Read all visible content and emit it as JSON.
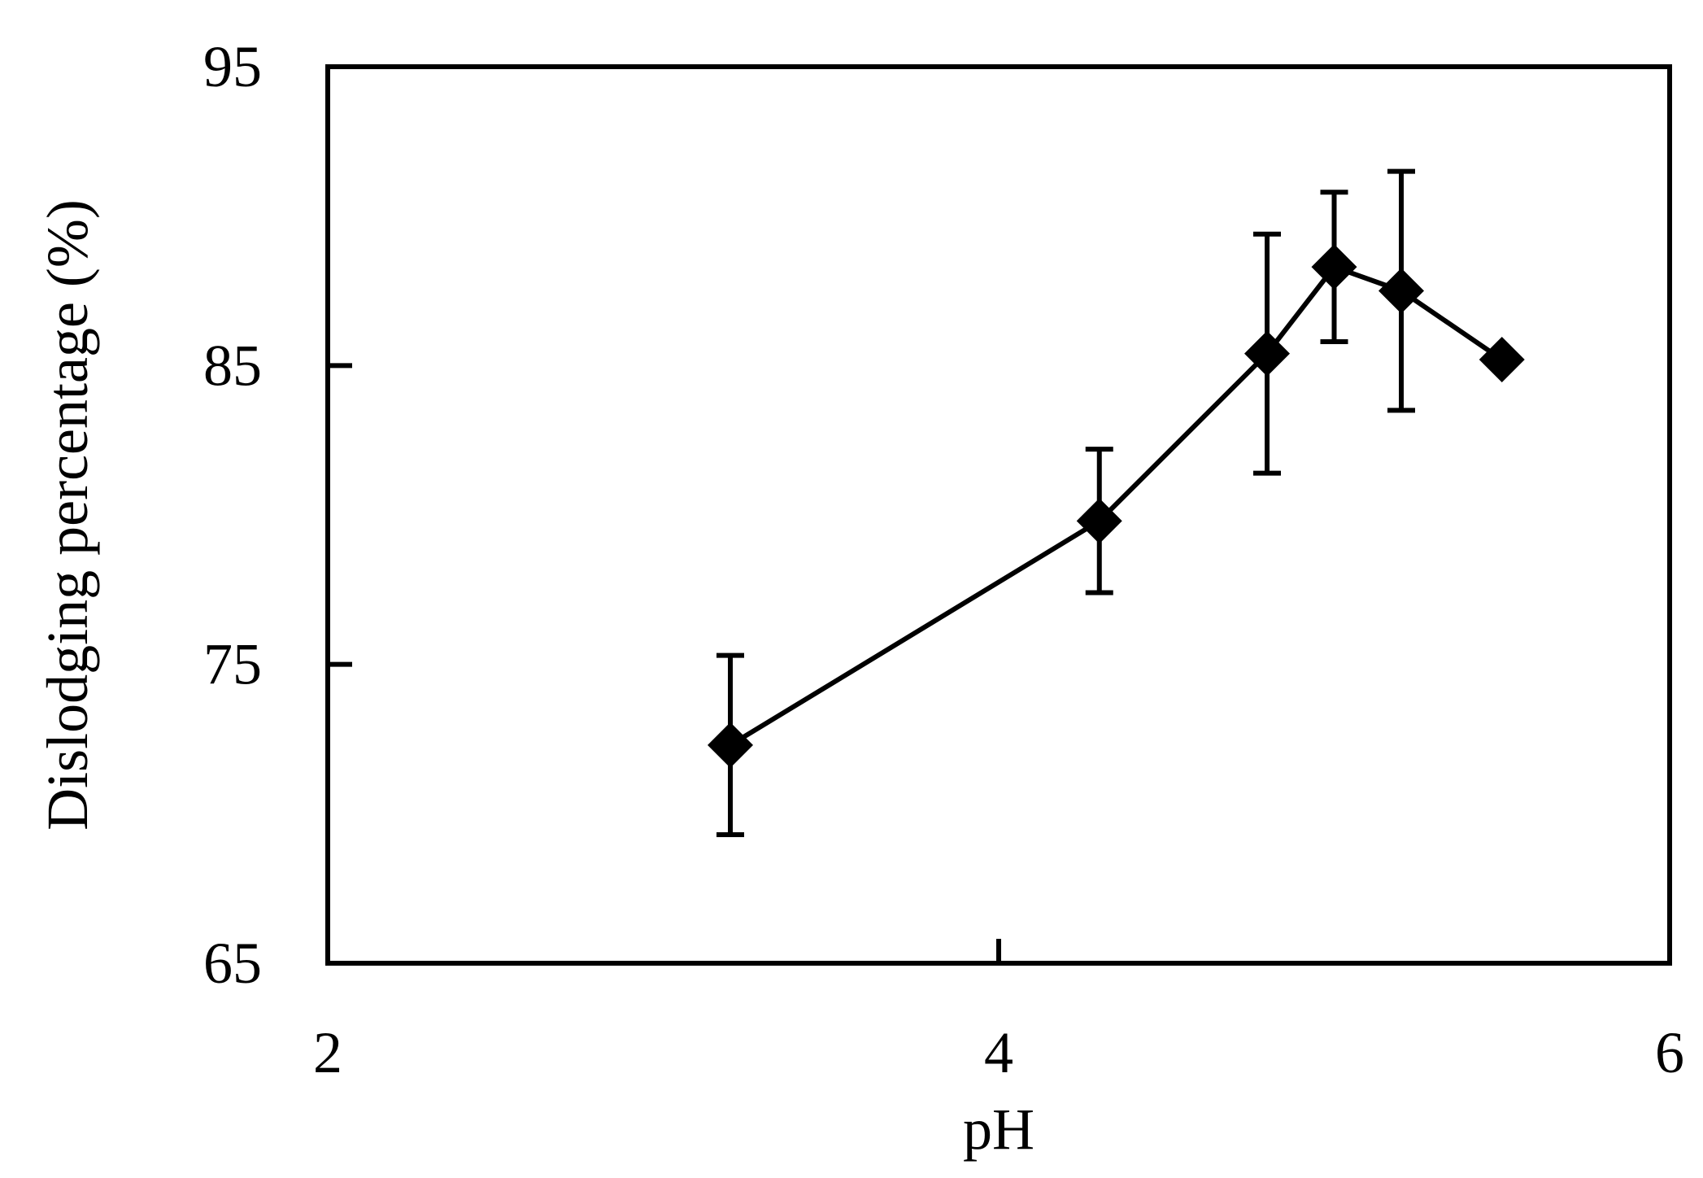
{
  "chart_data": {
    "type": "line",
    "xlabel": "pH",
    "ylabel": "Dislodging percentage (%)",
    "xlim": [
      2,
      6
    ],
    "ylim": [
      65,
      95
    ],
    "x_ticks": [
      2,
      4,
      6
    ],
    "y_ticks": [
      65,
      75,
      85,
      95
    ],
    "x_tick_labels": [
      "2",
      "4",
      "6"
    ],
    "y_tick_labels": [
      "65",
      "75",
      "85",
      "95"
    ],
    "grid": false,
    "legend": "none",
    "series": [
      {
        "marker": "diamond",
        "color": "#000000",
        "points": [
          {
            "x": 3.2,
            "y": 72.3,
            "err": 3.0
          },
          {
            "x": 4.3,
            "y": 79.8,
            "err": 2.4
          },
          {
            "x": 4.8,
            "y": 85.4,
            "err": 4.0
          },
          {
            "x": 5.0,
            "y": 88.3,
            "err": 2.5
          },
          {
            "x": 5.2,
            "y": 87.5,
            "err": 4.0
          },
          {
            "x": 5.5,
            "y": 85.2,
            "err": null
          }
        ]
      }
    ]
  }
}
